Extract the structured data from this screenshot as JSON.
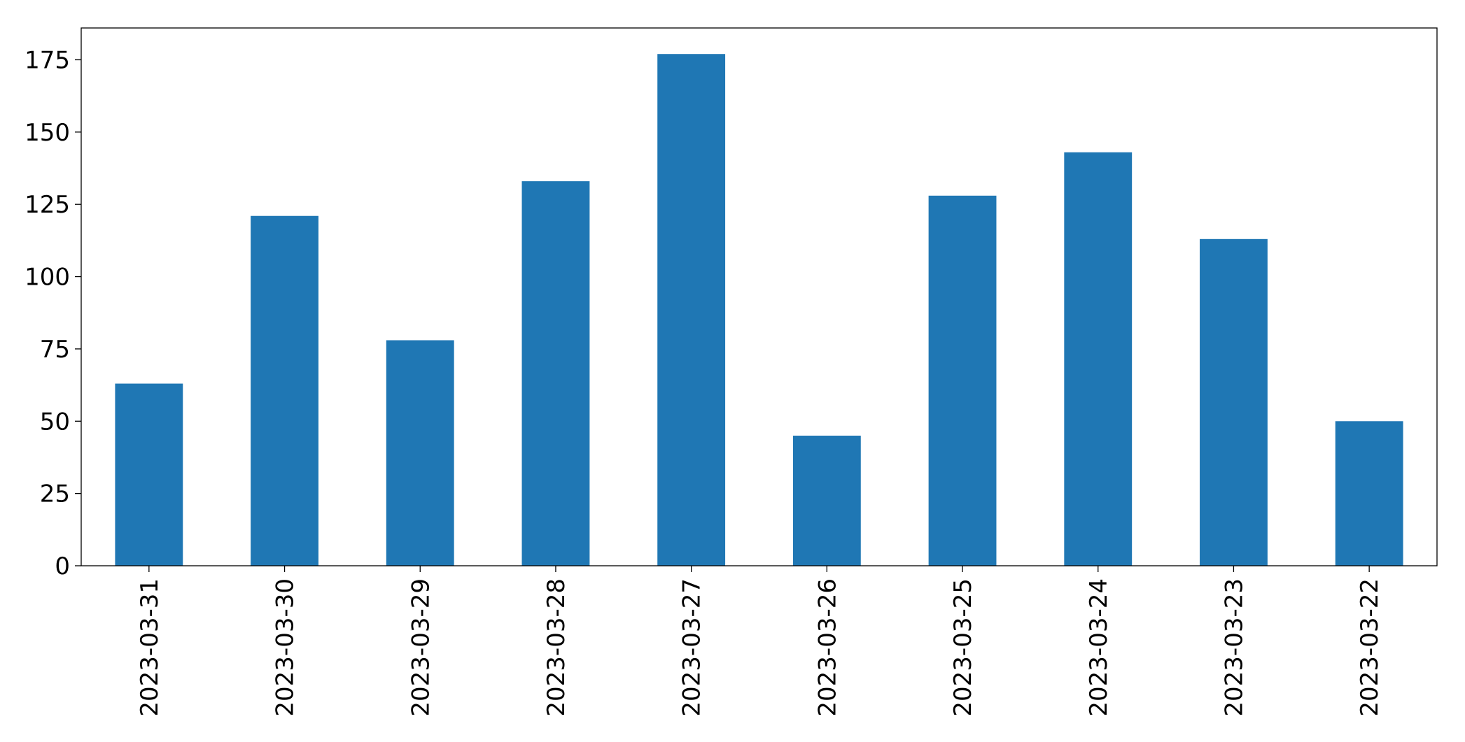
{
  "chart_data": {
    "type": "bar",
    "categories": [
      "2023-03-31",
      "2023-03-30",
      "2023-03-29",
      "2023-03-28",
      "2023-03-27",
      "2023-03-26",
      "2023-03-25",
      "2023-03-24",
      "2023-03-23",
      "2023-03-22"
    ],
    "values": [
      63,
      121,
      78,
      133,
      177,
      45,
      128,
      143,
      113,
      50
    ],
    "color": "#1f77b4",
    "ylim": [
      0,
      186
    ],
    "yticks": [
      0,
      25,
      50,
      75,
      100,
      125,
      150,
      175
    ],
    "grid": false
  }
}
